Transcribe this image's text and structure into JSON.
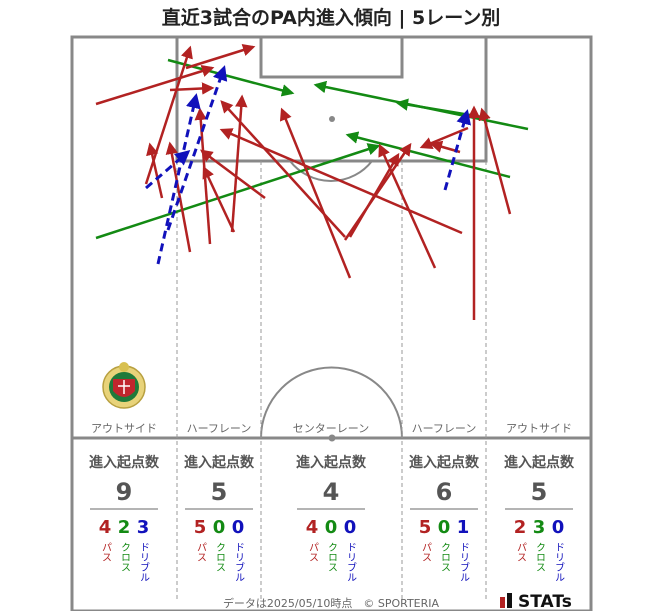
{
  "title": "直近3試合のPA内進入傾向 | 5レーン別",
  "colors": {
    "pass": "#b22222",
    "cross": "#138a13",
    "dribble": "#1111bb",
    "line": "#888888"
  },
  "lanes": [
    {
      "label": "アウトサイド",
      "header": "進入起点数",
      "total": "9",
      "pass": "4",
      "cross": "2",
      "dribble": "3"
    },
    {
      "label": "ハーフレーン",
      "header": "進入起点数",
      "total": "5",
      "pass": "5",
      "cross": "0",
      "dribble": "0"
    },
    {
      "label": "センターレーン",
      "header": "進入起点数",
      "total": "4",
      "pass": "4",
      "cross": "0",
      "dribble": "0"
    },
    {
      "label": "ハーフレーン",
      "header": "進入起点数",
      "total": "6",
      "pass": "5",
      "cross": "0",
      "dribble": "1"
    },
    {
      "label": "アウトサイド",
      "header": "進入起点数",
      "total": "5",
      "pass": "2",
      "cross": "3",
      "dribble": "0"
    }
  ],
  "type_labels": {
    "pass": "パス",
    "cross": "クロス",
    "dribble": "ドリブル"
  },
  "footer": "データは2025/05/10時点　© SPORTERIA",
  "brand": "STATs"
}
